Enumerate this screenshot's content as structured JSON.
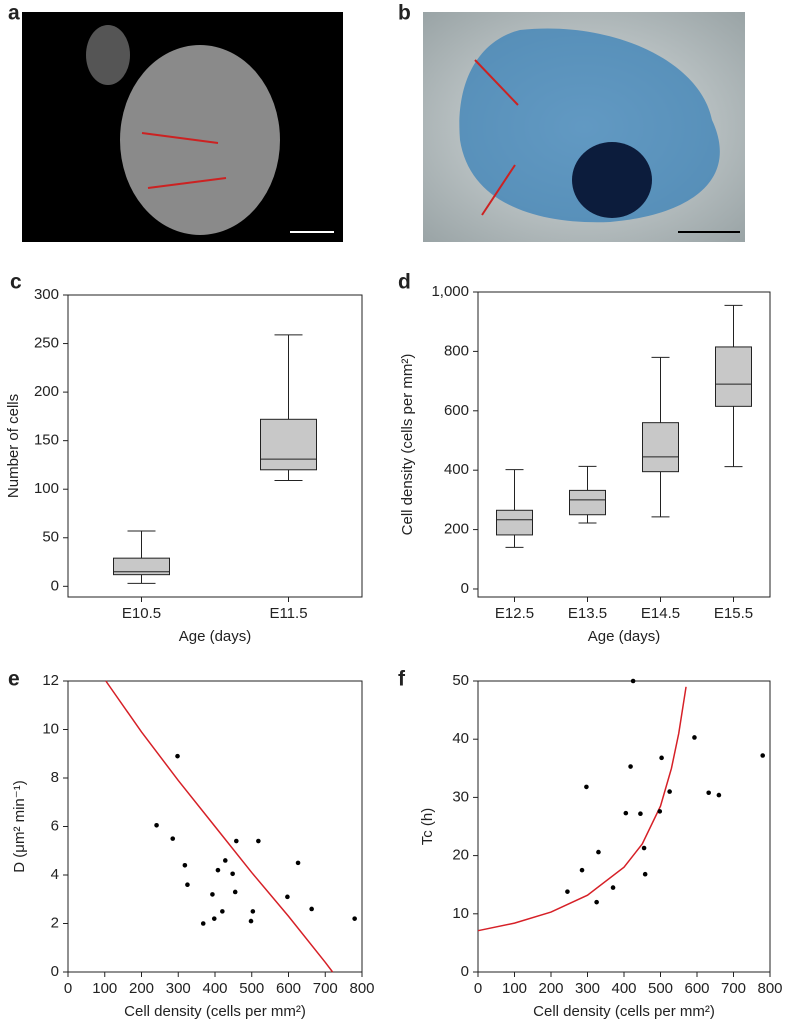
{
  "images": [
    {
      "label": "a"
    },
    {
      "label": "b"
    }
  ],
  "chart_data": [
    {
      "type": "box",
      "label": "c",
      "xlabel": "Age (days)",
      "ylabel": "Number of cells",
      "categories": [
        "E10.5",
        "E11.5"
      ],
      "color": "#c8c8c8",
      "boxes": [
        {
          "min": 3,
          "q1": 12,
          "median": 15,
          "q3": 29,
          "max": 57
        },
        {
          "min": 109,
          "q1": 120,
          "median": 131,
          "q3": 172,
          "max": 259
        }
      ],
      "ylim": [
        -11,
        300
      ],
      "yticks": [
        0,
        50,
        100,
        150,
        200,
        250,
        300
      ]
    },
    {
      "type": "box",
      "label": "d",
      "xlabel": "Age (days)",
      "ylabel": "Cell density (cells per mm²)",
      "categories": [
        "E12.5",
        "E13.5",
        "E14.5",
        "E15.5"
      ],
      "color": "#c8c8c8",
      "boxes": [
        {
          "min": 140,
          "q1": 182,
          "median": 233,
          "q3": 265,
          "max": 402
        },
        {
          "min": 222,
          "q1": 250,
          "median": 300,
          "q3": 332,
          "max": 413
        },
        {
          "min": 243,
          "q1": 395,
          "median": 445,
          "q3": 560,
          "max": 780
        },
        {
          "min": 412,
          "q1": 615,
          "median": 690,
          "q3": 815,
          "max": 955
        }
      ],
      "ylim": [
        -27,
        1000
      ],
      "yticks": [
        0,
        200,
        400,
        600,
        800,
        {
          "value": 1000,
          "label": "1,000"
        }
      ]
    },
    {
      "type": "scatter",
      "label": "e",
      "xlabel": "Cell density (cells per mm²)",
      "ylabel": "D (μm² min⁻¹)",
      "points": {
        "x": [
          241,
          285,
          298,
          318,
          325,
          368,
          393,
          398,
          408,
          420,
          428,
          448,
          455,
          458,
          498,
          503,
          518,
          597,
          626,
          663,
          780
        ],
        "y": [
          6.05,
          5.5,
          8.9,
          4.4,
          3.6,
          2.0,
          3.2,
          2.2,
          4.2,
          2.5,
          4.6,
          4.05,
          3.3,
          5.4,
          2.1,
          2.5,
          5.4,
          3.1,
          4.5,
          2.6,
          2.2
        ]
      },
      "curve": {
        "color": "#d62027",
        "x": [
          103,
          200,
          300,
          400,
          500,
          600,
          700,
          720
        ],
        "y": [
          12,
          9.9,
          7.9,
          6.0,
          4.1,
          2.3,
          0.4,
          0
        ]
      },
      "xlim": [
        0,
        800
      ],
      "xticks": [
        0,
        100,
        200,
        300,
        400,
        500,
        600,
        700,
        800
      ],
      "ylim": [
        0,
        12
      ],
      "yticks": [
        0,
        2,
        4,
        6,
        8,
        10,
        12
      ]
    },
    {
      "type": "scatter",
      "label": "f",
      "xlabel": "Cell density (cells per mm²)",
      "ylabel": "Tc (h)",
      "points": {
        "x": [
          245,
          285,
          297,
          325,
          330,
          370,
          405,
          418,
          425,
          445,
          455,
          458,
          498,
          503,
          525,
          593,
          632,
          660,
          780
        ],
        "y": [
          13.8,
          17.5,
          31.8,
          12,
          20.6,
          14.5,
          27.3,
          35.3,
          50,
          27.2,
          21.3,
          16.8,
          27.6,
          36.8,
          31,
          40.3,
          30.8,
          30.4,
          37.2
        ]
      },
      "curve": {
        "color": "#d62027",
        "x": [
          0,
          100,
          200,
          300,
          400,
          450,
          500,
          530,
          550,
          570
        ],
        "y": [
          7.1,
          8.4,
          10.3,
          13.2,
          18,
          22,
          28.5,
          35,
          41,
          49
        ]
      },
      "xlim": [
        0,
        800
      ],
      "xticks": [
        0,
        100,
        200,
        300,
        400,
        500,
        600,
        700,
        800
      ],
      "ylim": [
        0,
        50
      ],
      "yticks": [
        0,
        10,
        20,
        30,
        40,
        50
      ]
    }
  ]
}
